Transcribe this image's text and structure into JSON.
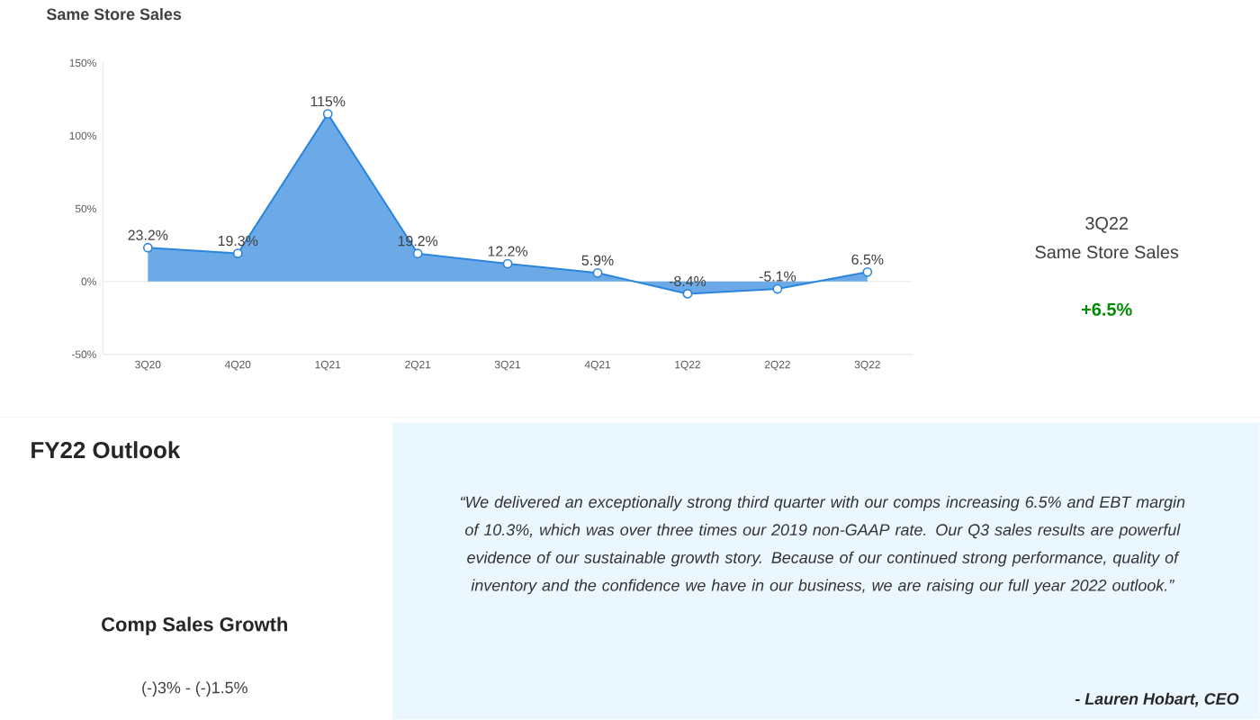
{
  "chart_data": [
    {
      "type": "area",
      "title": "Same Store Sales",
      "categories": [
        "3Q20",
        "4Q20",
        "1Q21",
        "2Q21",
        "3Q21",
        "4Q21",
        "1Q22",
        "2Q22",
        "3Q22"
      ],
      "series": [
        {
          "color": "#2b85dc",
          "values": [
            23.2,
            19.3,
            115,
            19.2,
            12.2,
            5.9,
            -8.4,
            -5.1,
            6.5
          ],
          "value_labels": [
            "23.2%",
            "19.3%",
            "115%",
            "19.2%",
            "12.2%",
            "5.9%",
            "-8.4%",
            "-5.1%",
            "6.5%"
          ]
        }
      ],
      "ylim": [
        -50,
        150
      ],
      "yticks": [
        {
          "value": -50,
          "label": "-50%"
        },
        {
          "value": 0,
          "label": "0%"
        },
        {
          "value": 50,
          "label": "50%"
        },
        {
          "value": 100,
          "label": "100%"
        },
        {
          "value": 150,
          "label": "150%"
        }
      ],
      "marker": "circle",
      "line_style": "solid",
      "ref_lines": [
        {
          "axis": "y",
          "value": 0,
          "color": "#e3e3e3"
        }
      ]
    },
    {
      "type": "other",
      "annotations": [
        "3Q22",
        "Same Store Sales",
        "+6.5%"
      ]
    },
    {
      "type": "other",
      "title": "FY22 Outlook",
      "annotations": [
        "Comp Sales Growth",
        "(-)3% - (-)1.5%",
        "“We delivered an exceptionally strong third quarter with our comps increasing 6.5% and EBT margin of 10.3%, which was over three times our 2019 non-GAAP rate. Our Q3 sales results are powerful evidence of our sustainable growth story. Because of our continued strong performance, quality of inventory and the confidence we have in our business, we are raising our full year 2022 outlook.”",
        "- Lauren Hobart, CEO"
      ]
    }
  ]
}
